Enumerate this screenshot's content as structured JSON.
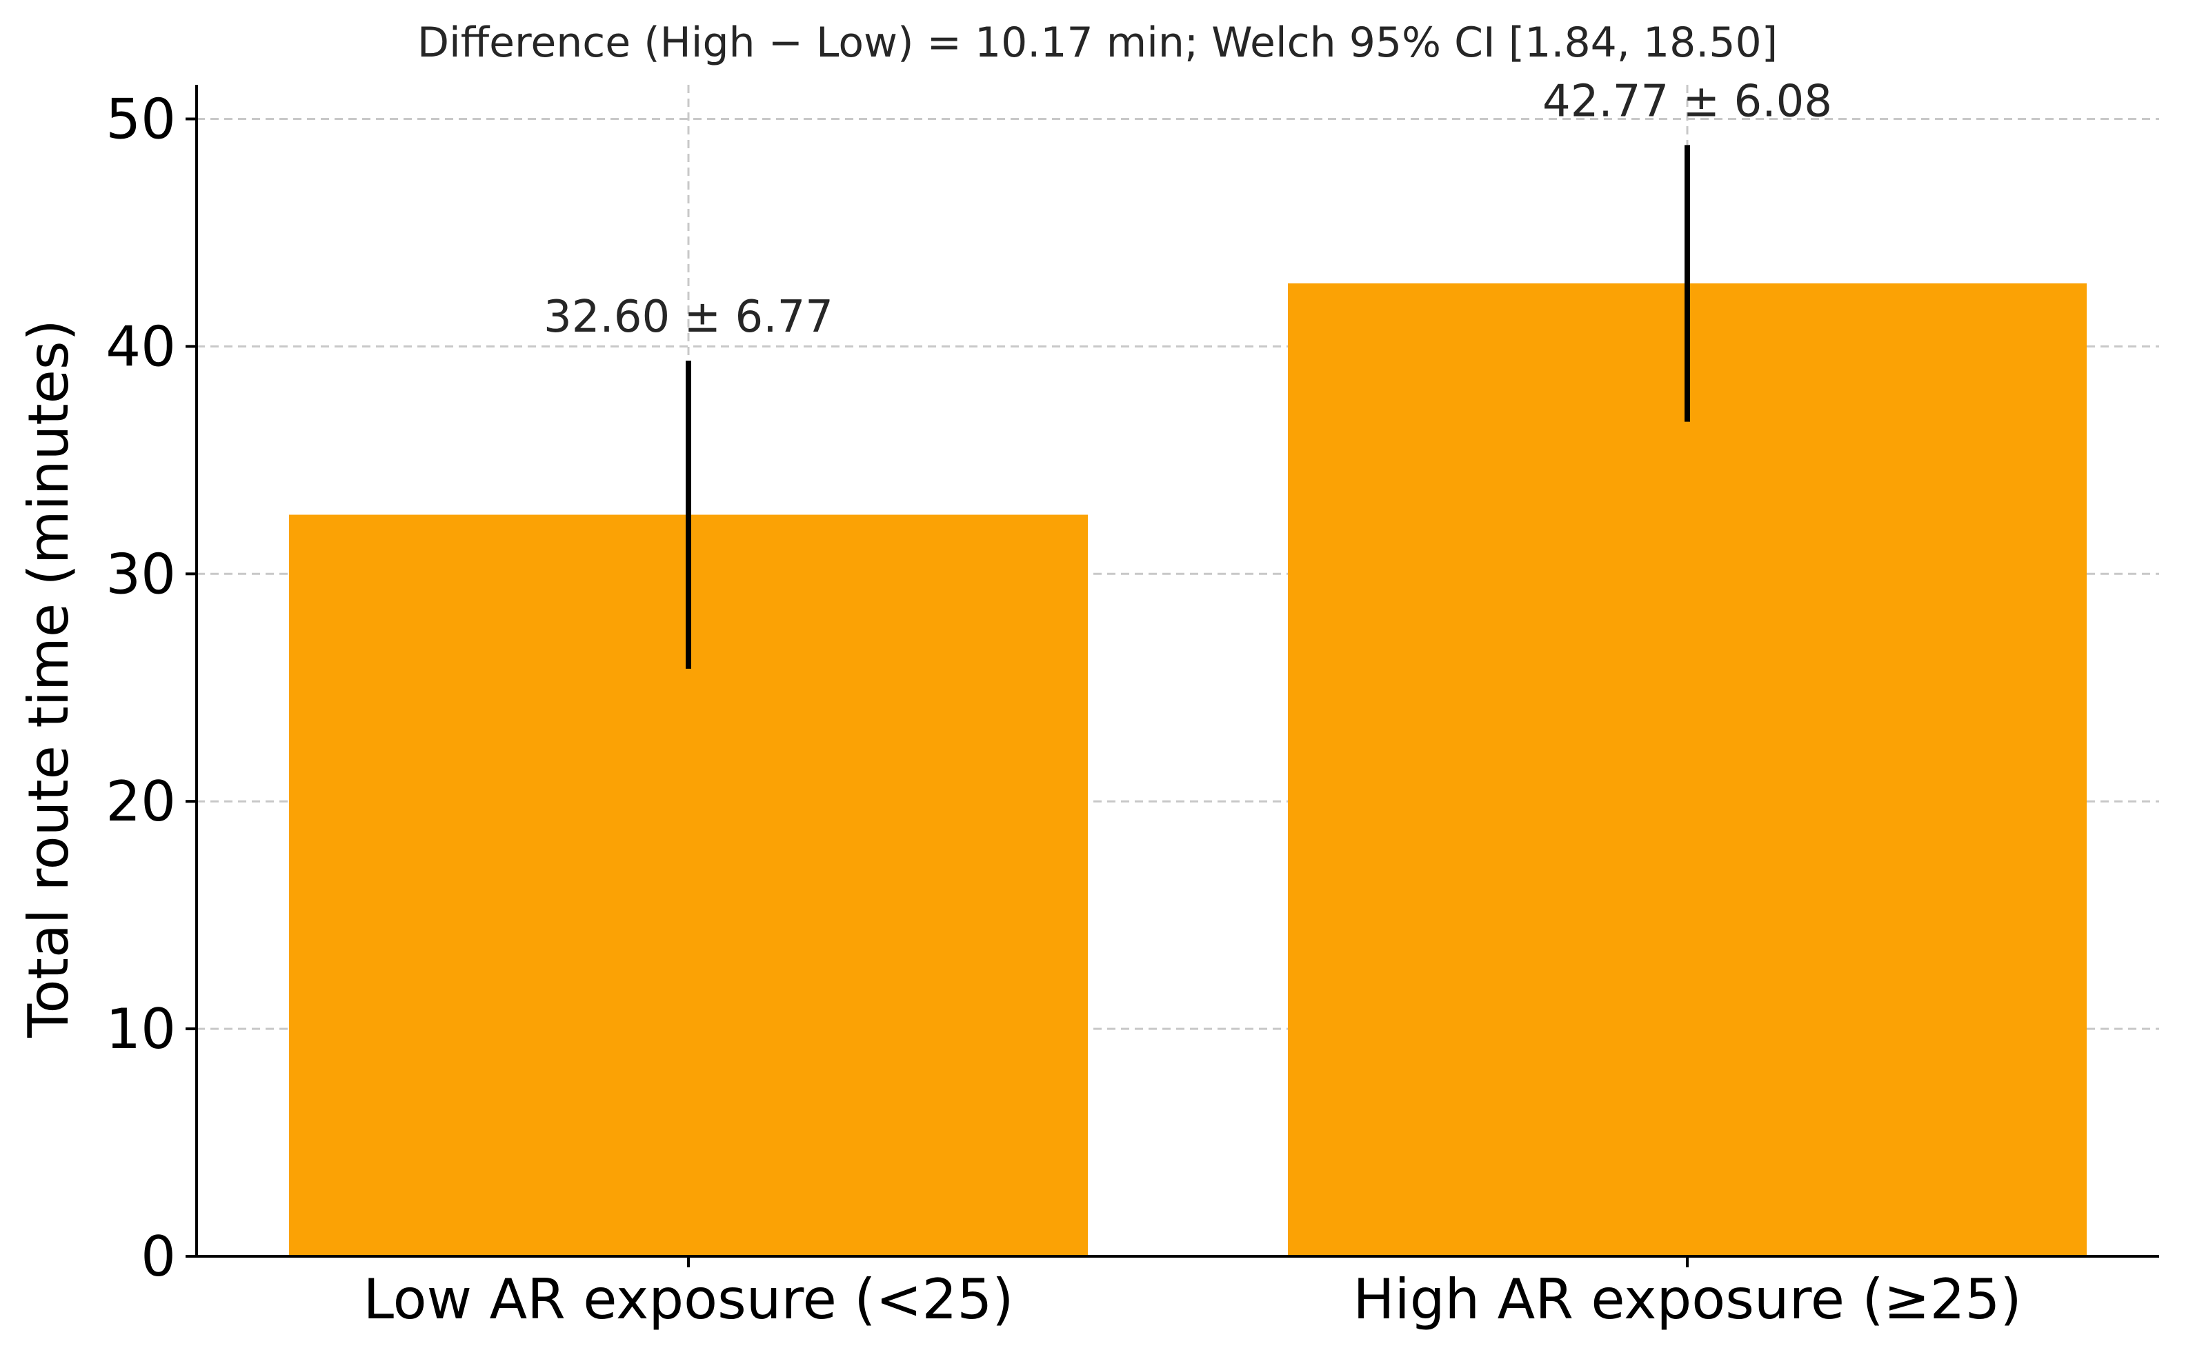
{
  "chart_data": {
    "type": "bar",
    "title": "Difference (High − Low) = 10.17 min; Welch 95% CI [1.84, 18.50]",
    "xlabel": "",
    "ylabel": "Total route time (minutes)",
    "categories": [
      "Low AR exposure (<25)",
      "High AR exposure (≥25)"
    ],
    "series": [
      {
        "values": [
          32.6,
          42.77
        ],
        "errors": [
          6.77,
          6.08
        ],
        "labels": [
          "32.60 ± 6.77",
          "42.77 ± 6.08"
        ],
        "color": "#FBA205"
      }
    ],
    "ylim": [
      0,
      51.5
    ],
    "yticks": [
      0,
      10,
      20,
      30,
      40,
      50
    ],
    "grid": true,
    "legend": "none"
  }
}
